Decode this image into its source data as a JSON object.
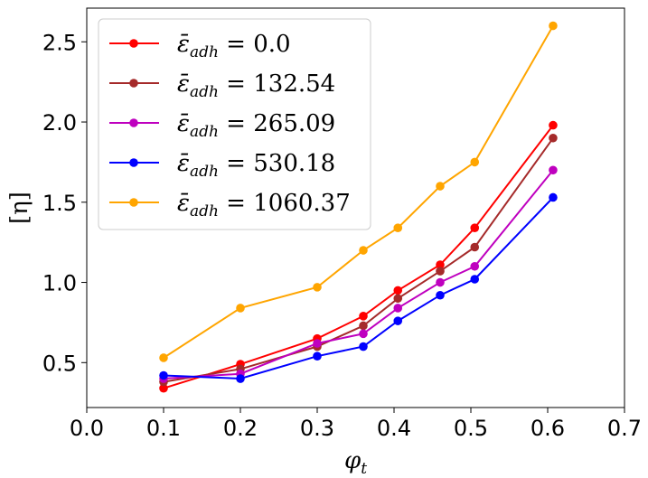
{
  "chart_data": {
    "type": "line",
    "title": "",
    "xlabel": "φ",
    "xlabel_sub": "t",
    "ylabel": "[η]",
    "xlim": [
      0.0,
      0.7
    ],
    "ylim": [
      0.22,
      2.71
    ],
    "xticks": [
      0.0,
      0.1,
      0.2,
      0.3,
      0.4,
      0.5,
      0.6,
      0.7
    ],
    "xtick_labels": [
      "0.0",
      "0.1",
      "0.2",
      "0.3",
      "0.4",
      "0.5",
      "0.6",
      "0.7"
    ],
    "yticks": [
      0.5,
      1.0,
      1.5,
      2.0,
      2.5
    ],
    "ytick_labels": [
      "0.5",
      "1.0",
      "1.5",
      "2.0",
      "2.5"
    ],
    "legend_position": "top-left",
    "x": [
      0.1,
      0.2,
      0.3,
      0.36,
      0.405,
      0.46,
      0.505,
      0.607
    ],
    "series": [
      {
        "name": "ε̄_adh = 0.0",
        "symbol": "ε̄",
        "sub": "adh",
        "value_text": " = 0.0",
        "color": "#ff0000",
        "values": [
          0.34,
          0.49,
          0.65,
          0.79,
          0.95,
          1.11,
          1.34,
          1.98
        ]
      },
      {
        "name": "ε̄_adh = 132.54",
        "symbol": "ε̄",
        "sub": "adh",
        "value_text": " = 132.54",
        "color": "#a52a2a",
        "values": [
          0.38,
          0.46,
          0.6,
          0.73,
          0.9,
          1.07,
          1.22,
          1.9
        ]
      },
      {
        "name": "ε̄_adh = 265.09",
        "symbol": "ε̄",
        "sub": "adh",
        "value_text": " = 265.09",
        "color": "#bf00bf",
        "values": [
          0.4,
          0.43,
          0.62,
          0.68,
          0.84,
          1.0,
          1.1,
          1.7
        ]
      },
      {
        "name": "ε̄_adh = 530.18",
        "symbol": "ε̄",
        "sub": "adh",
        "value_text": " = 530.18",
        "color": "#0000ff",
        "values": [
          0.42,
          0.4,
          0.54,
          0.6,
          0.76,
          0.92,
          1.02,
          1.53
        ]
      },
      {
        "name": "ε̄_adh = 1060.37",
        "symbol": "ε̄",
        "sub": "adh",
        "value_text": " = 1060.37",
        "color": "#ffa500",
        "values": [
          0.53,
          0.84,
          0.97,
          1.2,
          1.34,
          1.6,
          1.75,
          2.6
        ]
      }
    ]
  }
}
